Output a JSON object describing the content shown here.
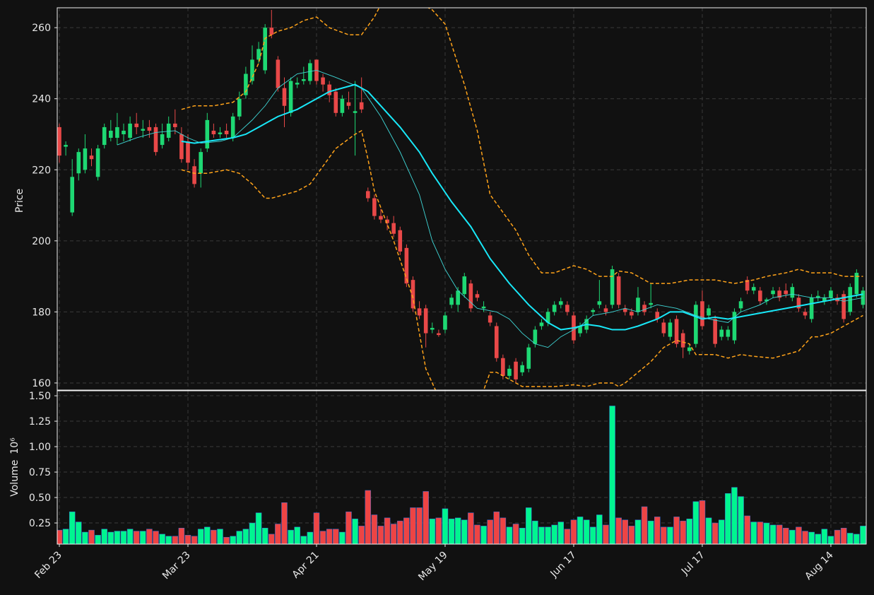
{
  "chart_data": [
    {
      "type": "candlestick",
      "ylabel": "Price",
      "up_color": "#1ed873",
      "down_color": "#e94848",
      "xlim": [
        -0.33,
        125.5
      ],
      "ylim": [
        158,
        265.6
      ],
      "yticks": [
        160,
        180,
        200,
        220,
        240,
        260
      ],
      "grid": true,
      "open": [
        232,
        226.5,
        208,
        219,
        220,
        224,
        218,
        227,
        229,
        229,
        230,
        229,
        233,
        231,
        232,
        232,
        227,
        229,
        233,
        230,
        228,
        221,
        219,
        226,
        231,
        230,
        231,
        229,
        235,
        241,
        245,
        251,
        248,
        260,
        251,
        243,
        236,
        244,
        245,
        245,
        251,
        246,
        244,
        242,
        236,
        239,
        236,
        239,
        214,
        212,
        207,
        206,
        205,
        203,
        198,
        189,
        181,
        181,
        175,
        174,
        175,
        182,
        182,
        185,
        188,
        185,
        181,
        179,
        176,
        167,
        162,
        166,
        163,
        164,
        171,
        176,
        177,
        180,
        182,
        182,
        179,
        174,
        175,
        180,
        182,
        181,
        182,
        190,
        181,
        180,
        180,
        182,
        182,
        180,
        177,
        173,
        178,
        174,
        169,
        171,
        183,
        179,
        178,
        173,
        173,
        172,
        181,
        189,
        186,
        186,
        183,
        185,
        186,
        186,
        184,
        184,
        180,
        178,
        184,
        183,
        184,
        184,
        185,
        180,
        185,
        182
      ],
      "high": [
        233,
        228,
        223,
        226,
        230,
        226,
        227,
        233,
        234,
        236,
        233,
        235,
        236,
        234,
        234,
        233,
        233,
        235,
        237,
        232,
        230,
        223,
        226,
        236,
        233,
        232,
        233,
        236,
        242,
        249,
        255,
        256,
        261,
        265,
        252,
        246,
        246,
        246,
        249,
        251,
        251,
        247,
        245,
        243,
        241,
        242,
        245,
        246,
        215,
        213,
        209,
        207,
        207,
        204,
        199,
        190,
        183,
        182,
        177,
        175,
        180,
        185,
        187,
        191,
        189,
        186,
        183,
        180,
        177,
        168,
        165,
        167,
        166,
        171,
        176,
        178,
        181,
        183,
        184,
        183,
        180,
        177,
        179,
        181,
        189,
        182,
        193,
        191,
        182,
        181,
        187,
        183,
        188,
        181,
        178,
        178,
        179,
        175,
        171,
        183,
        186,
        182,
        179,
        176,
        176,
        181,
        184,
        190,
        188,
        187,
        184,
        187,
        187,
        188,
        188,
        185,
        181,
        185,
        186,
        185,
        187,
        185,
        186,
        188,
        192,
        187
      ],
      "low": [
        222,
        224,
        207,
        217,
        219,
        221,
        217,
        226,
        228,
        227,
        228,
        228,
        230,
        229,
        229,
        224,
        226,
        228,
        230,
        222,
        220,
        215,
        215,
        225,
        229,
        229,
        229,
        228,
        234,
        240,
        244,
        250,
        247,
        257,
        242,
        232,
        235,
        243,
        244,
        244,
        244,
        242,
        239,
        235,
        235,
        237,
        224,
        236,
        211,
        206,
        205,
        203,
        201,
        196,
        187,
        180,
        178,
        170,
        174,
        173,
        174,
        181,
        180,
        184,
        180,
        183,
        180,
        176,
        166,
        161,
        161,
        160,
        162,
        163,
        170,
        175,
        176,
        179,
        181,
        179,
        171,
        173,
        174,
        179,
        181,
        179,
        181,
        181,
        179,
        178,
        179,
        179,
        181,
        177,
        173,
        172,
        170,
        167,
        168,
        170,
        175,
        178,
        170,
        172,
        172,
        171,
        180,
        185,
        185,
        182,
        182,
        184,
        183,
        184,
        183,
        180,
        178,
        177,
        183,
        182,
        183,
        182,
        177,
        179,
        184,
        181
      ],
      "close": [
        224,
        227,
        218,
        225,
        226,
        223,
        226,
        232,
        231,
        232,
        231,
        233,
        232,
        231.5,
        231,
        225,
        230,
        233,
        232,
        223,
        222,
        216,
        225,
        234,
        230,
        230.5,
        230,
        235,
        240,
        247,
        251,
        254,
        260,
        258,
        243,
        238,
        245,
        244.5,
        245.5,
        250,
        245,
        244,
        241,
        236,
        240,
        238,
        236.5,
        237,
        212,
        207,
        206,
        205,
        202,
        197,
        188,
        181,
        179,
        174,
        175.5,
        173.5,
        179,
        184,
        186,
        190,
        181,
        184,
        181.5,
        177,
        167,
        162,
        164,
        161,
        165,
        170,
        175,
        177,
        180,
        182,
        183,
        180,
        172,
        176,
        178,
        180.5,
        183,
        180,
        192,
        182,
        180,
        179,
        184,
        180,
        182.5,
        178,
        174,
        177,
        171,
        170,
        170,
        182,
        176,
        181,
        171,
        175,
        175,
        180,
        183,
        186,
        187,
        183,
        183.5,
        186,
        184,
        185,
        187,
        181,
        179,
        184,
        184.5,
        184,
        186,
        183,
        178,
        187,
        191,
        186
      ],
      "lines": [
        {
          "color": "#3fd8d8",
          "width": 0.9,
          "dashed": false,
          "x": [
            9,
            12,
            15,
            18,
            20,
            22,
            25,
            27,
            30,
            32,
            34,
            37,
            40,
            43,
            47,
            50,
            53,
            56,
            58,
            60,
            62,
            65,
            68,
            70,
            72,
            74,
            76,
            78,
            81,
            83,
            86,
            88,
            90,
            93,
            96,
            99,
            101,
            104,
            106,
            109,
            111,
            114,
            117,
            120,
            122,
            125
          ],
          "values": [
            227,
            229,
            230.5,
            231,
            229,
            227.5,
            228,
            229,
            234,
            238,
            243,
            247,
            248,
            246,
            243,
            235,
            225,
            213,
            200,
            192,
            186,
            181,
            180,
            178,
            174,
            171,
            170,
            173,
            176,
            179,
            180,
            181,
            180,
            182,
            181,
            179,
            178,
            177,
            180,
            182,
            184,
            185,
            184,
            184,
            183,
            184
          ]
        },
        {
          "color": "#18e8f8",
          "width": 2,
          "dashed": false,
          "x": [
            19,
            21,
            23,
            27,
            29,
            31,
            34,
            37,
            39,
            42,
            46,
            48,
            50,
            53,
            56,
            58,
            61,
            64,
            67,
            70,
            73,
            76,
            78,
            80,
            82,
            84,
            86,
            88,
            90,
            93,
            95,
            97,
            100,
            102,
            104,
            107,
            110,
            113,
            116,
            119,
            122,
            125
          ],
          "values": [
            228,
            227.5,
            228,
            229,
            230,
            232,
            235,
            237,
            239,
            242,
            244,
            242,
            238,
            232,
            225,
            219,
            211,
            204,
            195,
            188,
            182,
            177,
            175,
            175.5,
            176.5,
            176,
            175,
            175,
            176,
            178,
            180,
            180,
            178,
            178.5,
            178,
            179,
            180,
            181,
            182,
            183,
            184,
            185
          ]
        },
        {
          "color": "#ffa31a",
          "width": 1.5,
          "dashed": true,
          "x": [
            19,
            21,
            24,
            27,
            29,
            31,
            32,
            34,
            36,
            38,
            40,
            42,
            45,
            47,
            49,
            51,
            53,
            55,
            57,
            58,
            60,
            63,
            65,
            67,
            69,
            71,
            73,
            75,
            77,
            80,
            82,
            84,
            86,
            87,
            89,
            92,
            95,
            98,
            102,
            105,
            108,
            110,
            113,
            115,
            117,
            120,
            122,
            125
          ],
          "values": [
            237,
            238,
            238,
            239,
            242,
            250,
            257,
            259,
            260,
            262,
            263,
            260,
            258,
            258,
            263,
            270,
            270,
            270,
            266,
            265,
            261,
            244,
            231,
            213,
            208,
            203,
            196,
            191,
            191,
            193,
            192,
            190,
            190,
            191.5,
            191,
            188,
            188,
            189,
            189,
            188,
            189,
            190,
            191,
            192,
            191,
            191,
            190,
            190
          ]
        },
        {
          "color": "#ffa31a",
          "width": 1.5,
          "dashed": true,
          "x": [
            19,
            21,
            23,
            26,
            28,
            30,
            32,
            33,
            35,
            37,
            39,
            41,
            43,
            46,
            47,
            48,
            49,
            52,
            55,
            57,
            59,
            62,
            64,
            66,
            67,
            68,
            70,
            72,
            74,
            77,
            80,
            82,
            84,
            86,
            87,
            88,
            90,
            92,
            94,
            96,
            98,
            99,
            102,
            104,
            106,
            108,
            111,
            113,
            115,
            117,
            118,
            120,
            123,
            125
          ],
          "values": [
            220,
            219,
            219,
            220,
            219,
            216,
            212,
            212,
            213,
            214,
            216,
            221,
            226,
            230,
            231,
            223,
            214,
            200,
            184,
            164,
            156,
            150,
            150,
            158,
            163,
            163,
            161,
            159,
            159,
            159,
            159.5,
            159,
            160,
            160,
            159,
            160,
            163,
            166,
            170,
            172,
            171,
            168,
            168,
            167,
            168,
            167.5,
            167,
            168,
            169,
            173,
            173,
            174,
            177,
            179
          ]
        }
      ]
    },
    {
      "type": "bar",
      "ylabel": "Volume",
      "scale_label": "10⁶",
      "up_color": "#00f590",
      "down_color": "#ee4444",
      "categories": [
        "Feb 23",
        null,
        null,
        null,
        null,
        null,
        null,
        null,
        null,
        null,
        null,
        null,
        null,
        null,
        null,
        null,
        null,
        null,
        null,
        null,
        "Mar 23",
        null,
        null,
        null,
        null,
        null,
        null,
        null,
        null,
        null,
        null,
        null,
        null,
        null,
        null,
        null,
        null,
        null,
        null,
        null,
        "Apr 21",
        null,
        null,
        null,
        null,
        null,
        null,
        null,
        null,
        null,
        null,
        null,
        null,
        null,
        null,
        null,
        null,
        null,
        null,
        null,
        "May 19",
        null,
        null,
        null,
        null,
        null,
        null,
        null,
        null,
        null,
        null,
        null,
        null,
        null,
        null,
        null,
        null,
        null,
        null,
        null,
        "Jun 17",
        null,
        null,
        null,
        null,
        null,
        null,
        null,
        null,
        null,
        null,
        null,
        null,
        null,
        null,
        null,
        null,
        null,
        null,
        null,
        "Jul 17",
        null,
        null,
        null,
        null,
        null,
        null,
        null,
        null,
        null,
        null,
        null,
        null,
        null,
        null,
        null,
        null,
        null,
        null,
        null,
        "Aug 14",
        null,
        null,
        null,
        null,
        null
      ],
      "values": [
        0.18,
        0.19,
        0.36,
        0.26,
        0.16,
        0.18,
        0.13,
        0.19,
        0.16,
        0.17,
        0.17,
        0.19,
        0.17,
        0.17,
        0.19,
        0.17,
        0.14,
        0.12,
        0.12,
        0.2,
        0.13,
        0.12,
        0.19,
        0.21,
        0.18,
        0.19,
        0.11,
        0.12,
        0.17,
        0.19,
        0.25,
        0.35,
        0.2,
        0.14,
        0.24,
        0.45,
        0.18,
        0.21,
        0.12,
        0.16,
        0.35,
        0.17,
        0.19,
        0.19,
        0.16,
        0.36,
        0.29,
        0.22,
        0.57,
        0.33,
        0.22,
        0.3,
        0.24,
        0.27,
        0.3,
        0.4,
        0.4,
        0.56,
        0.29,
        0.3,
        0.39,
        0.29,
        0.3,
        0.28,
        0.35,
        0.23,
        0.22,
        0.28,
        0.36,
        0.3,
        0.21,
        0.24,
        0.2,
        0.4,
        0.27,
        0.21,
        0.21,
        0.23,
        0.26,
        0.19,
        0.28,
        0.31,
        0.28,
        0.21,
        0.33,
        0.23,
        1.4,
        0.3,
        0.28,
        0.22,
        0.28,
        0.41,
        0.27,
        0.31,
        0.21,
        0.21,
        0.31,
        0.27,
        0.29,
        0.46,
        0.47,
        0.3,
        0.25,
        0.28,
        0.54,
        0.6,
        0.51,
        0.32,
        0.26,
        0.26,
        0.25,
        0.23,
        0.23,
        0.2,
        0.18,
        0.21,
        0.17,
        0.16,
        0.14,
        0.19,
        0.12,
        0.18,
        0.2,
        0.15,
        0.14,
        0.22
      ],
      "ylim": [
        0.042,
        1.549
      ],
      "yticks": [
        0.25,
        {
          "value": 0.5,
          "label": "0.50"
        },
        0.75,
        {
          "value": 1.0,
          "label": "1.00"
        },
        1.25,
        {
          "value": 1.5,
          "label": "1.50"
        }
      ],
      "grid": true
    }
  ]
}
